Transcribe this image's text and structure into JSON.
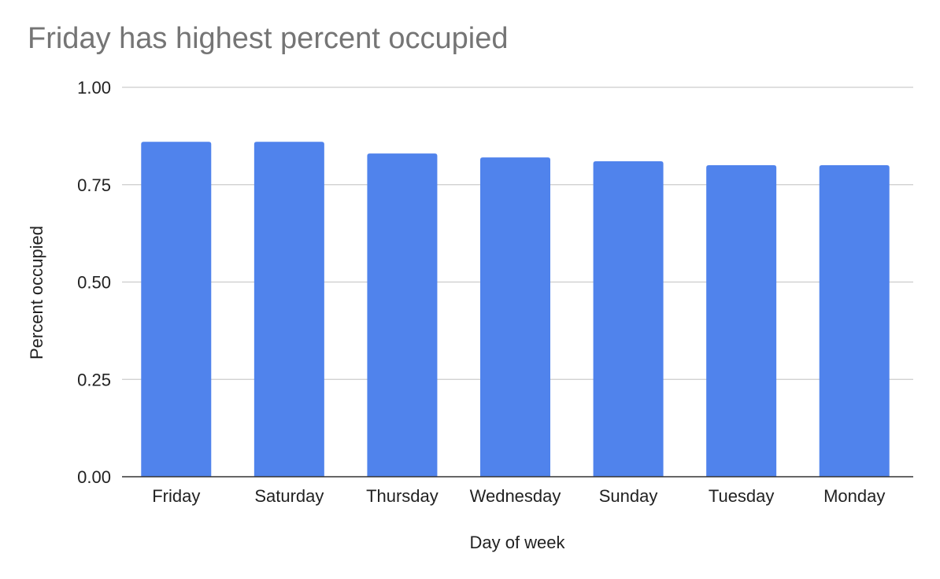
{
  "chart_data": {
    "type": "bar",
    "title": "Friday has highest percent occupied",
    "xlabel": "Day of week",
    "ylabel": "Percent occupied",
    "categories": [
      "Friday",
      "Saturday",
      "Thursday",
      "Wednesday",
      "Sunday",
      "Tuesday",
      "Monday"
    ],
    "values": [
      0.86,
      0.86,
      0.83,
      0.82,
      0.81,
      0.8,
      0.8
    ],
    "ylim": [
      0,
      1
    ],
    "yticks": [
      "0.00",
      "0.25",
      "0.50",
      "0.75",
      "1.00"
    ],
    "ytick_values": [
      0,
      0.25,
      0.5,
      0.75,
      1.0
    ],
    "grid": true,
    "legend": "none",
    "colors": {
      "bar": "#5083EC",
      "title": "#757575",
      "grid": "#CCCCCC",
      "axis": "#333333",
      "text": "#222222"
    }
  }
}
